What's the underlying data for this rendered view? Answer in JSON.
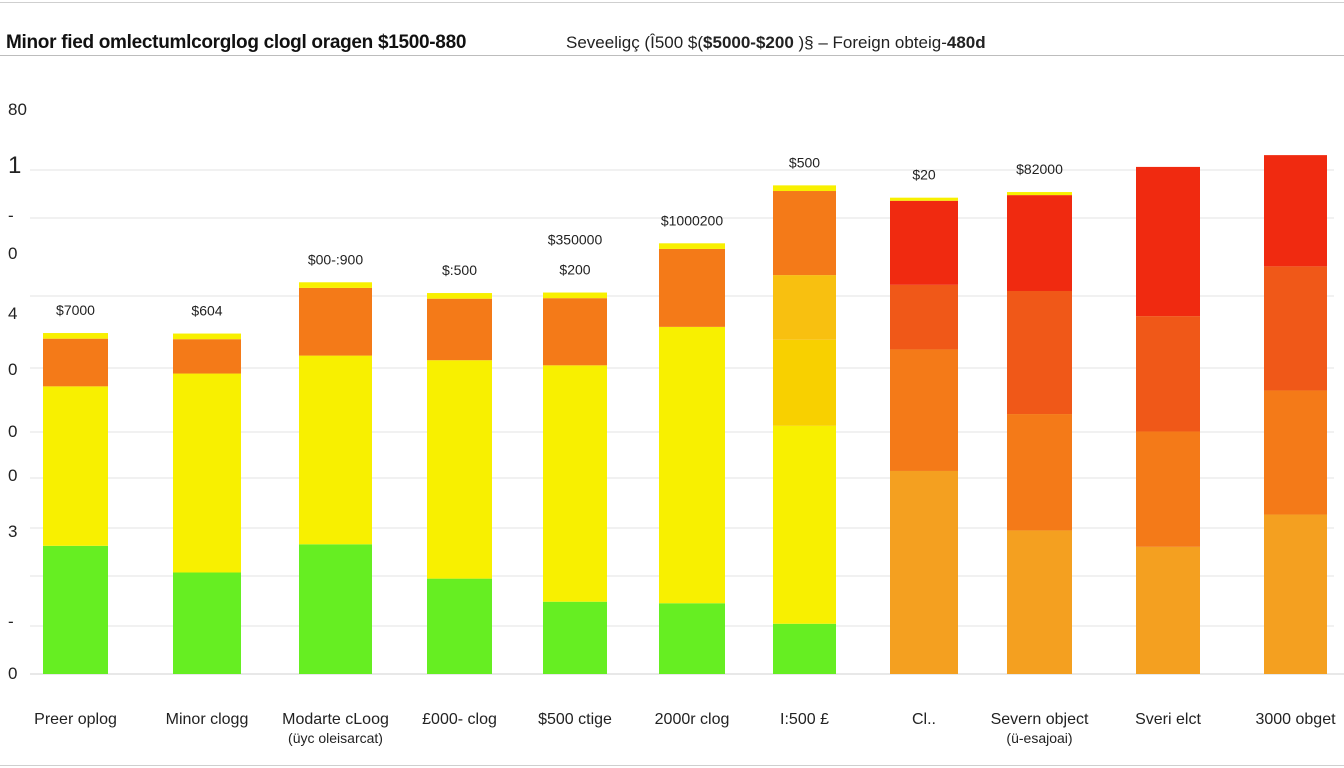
{
  "header": {
    "title_left": "Minor fied omlectumlcorglog clogl oragen $1500-880",
    "title_right_prefix": "Seveeligç (Î500 $(",
    "title_right_bold": "$5000-$200",
    "title_right_mid": " )§ – Foreign obteig-",
    "title_right_bold2": "480d"
  },
  "chart_data": {
    "type": "bar",
    "stacked": true,
    "y_tick_labels": [
      "80",
      "1",
      "-",
      "0",
      "4",
      "0",
      "0",
      "0",
      "3",
      "-",
      "0"
    ],
    "categories": [
      {
        "label": "Preer oplog",
        "sub": ""
      },
      {
        "label": "Minor clogg",
        "sub": ""
      },
      {
        "label": "Modarte cLoog",
        "sub": "(üyc oleisarcat)"
      },
      {
        "label": "£000- clog",
        "sub": ""
      },
      {
        "label": "$500 ctige",
        "sub": ""
      },
      {
        "label": "2000r clog",
        "sub": ""
      },
      {
        "label": "I:500 £",
        "sub": ""
      },
      {
        "label": "Cl..",
        "sub": ""
      },
      {
        "label": "Severn object",
        "sub": "(ü-esajoai)"
      },
      {
        "label": "Sveri elct",
        "sub": ""
      },
      {
        "label": "3000 obget",
        "sub": ""
      }
    ],
    "value_labels": [
      [
        "$7000"
      ],
      [
        "$604"
      ],
      [
        "$00-:900"
      ],
      [
        "$:500"
      ],
      [
        "$350000",
        "$200"
      ],
      [
        "$1000200"
      ],
      [
        "$500"
      ],
      [
        "$20"
      ],
      [
        "$82000"
      ],
      [],
      []
    ],
    "series": [
      {
        "name": "green",
        "color": "#66ee22",
        "values": [
          25.0,
          19.8,
          25.3,
          18.6,
          14.1,
          13.8,
          9.8,
          0,
          0,
          0,
          0
        ]
      },
      {
        "name": "yellow",
        "color": "#f8f000",
        "values": [
          31.1,
          38.8,
          36.8,
          42.6,
          46.1,
          53.9,
          38.6,
          0,
          0,
          0,
          0
        ]
      },
      {
        "name": "gold",
        "color": "#f8d000",
        "values": [
          0,
          0,
          0,
          0,
          0,
          0,
          16.8,
          0,
          0,
          0,
          0
        ]
      },
      {
        "name": "light-orange",
        "color": "#f8c010",
        "values": [
          0,
          0,
          0,
          0,
          0,
          0,
          12.6,
          0,
          0,
          0,
          0
        ]
      },
      {
        "name": "orange",
        "color": "#f4a020",
        "values": [
          0,
          0,
          0,
          0,
          0,
          0,
          0,
          39.6,
          28.0,
          24.8,
          31.1
        ]
      },
      {
        "name": "dark-orange",
        "color": "#f47a18",
        "values": [
          9.3,
          6.7,
          13.2,
          12.0,
          13.1,
          15.2,
          16.4,
          23.7,
          22.7,
          22.5,
          24.2
        ]
      },
      {
        "name": "red-orange",
        "color": "#f05818",
        "values": [
          0,
          0,
          0,
          0,
          0,
          0,
          0,
          12.6,
          24.0,
          22.5,
          24.2
        ]
      },
      {
        "name": "red",
        "color": "#f02a10",
        "values": [
          0,
          0,
          0,
          0,
          0,
          0,
          0,
          16.4,
          18.7,
          29.1,
          21.7
        ]
      },
      {
        "name": "yellow-cap",
        "color": "#f8f000",
        "values": [
          1.1,
          1.1,
          1.1,
          1.1,
          1.1,
          1.1,
          1.1,
          0.6,
          0.6,
          0,
          0
        ]
      }
    ],
    "ylim": [
      0,
      110
    ],
    "grid": true,
    "title": "Minor fied omlectumlcorglog clogl oragen $1500-880",
    "xlabel": "",
    "ylabel": ""
  }
}
